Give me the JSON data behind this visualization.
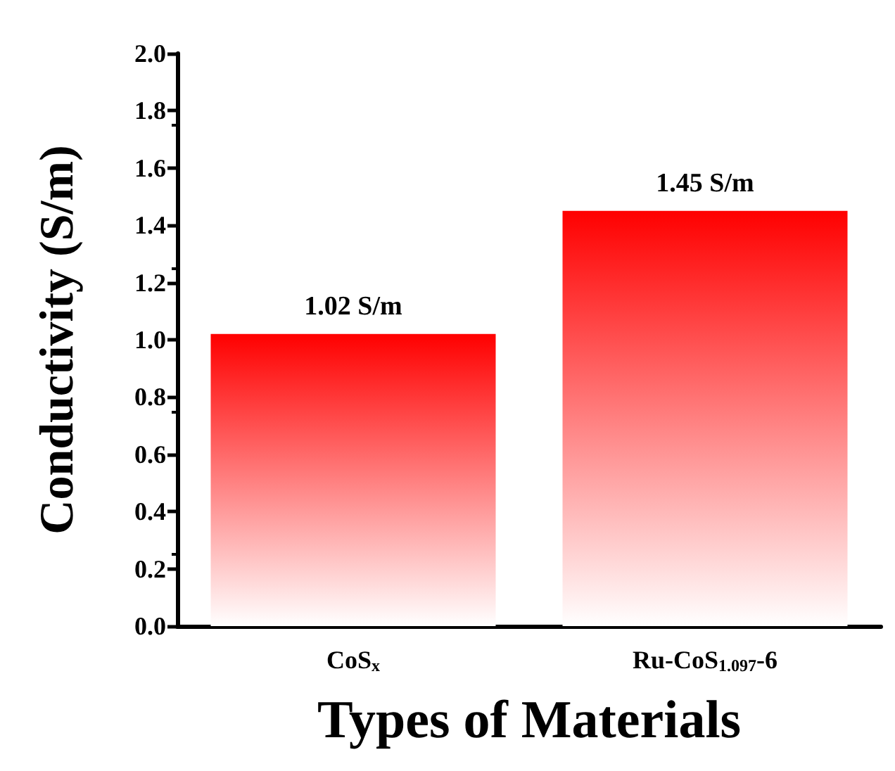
{
  "chart_data": {
    "type": "bar",
    "xlabel": "Types of Materials",
    "ylabel": "Conductivity (S/m)",
    "categories": [
      "CoS$_{x}$",
      "Ru-CoS$_{1.097}$-6"
    ],
    "values": [
      1.02,
      1.45
    ],
    "value_labels": [
      "1.02 S/m",
      "1.45 S/m"
    ],
    "color": "#ff0000",
    "ylim": [
      0,
      2.0
    ],
    "yticks": [
      {
        "value": 0,
        "label": "0.0"
      },
      0.2,
      0.4,
      0.6,
      0.8,
      {
        "value": 1,
        "label": "1.0"
      },
      1.2,
      1.4,
      1.6,
      1.8,
      {
        "value": 2,
        "label": "2.0"
      }
    ],
    "grid": false
  }
}
